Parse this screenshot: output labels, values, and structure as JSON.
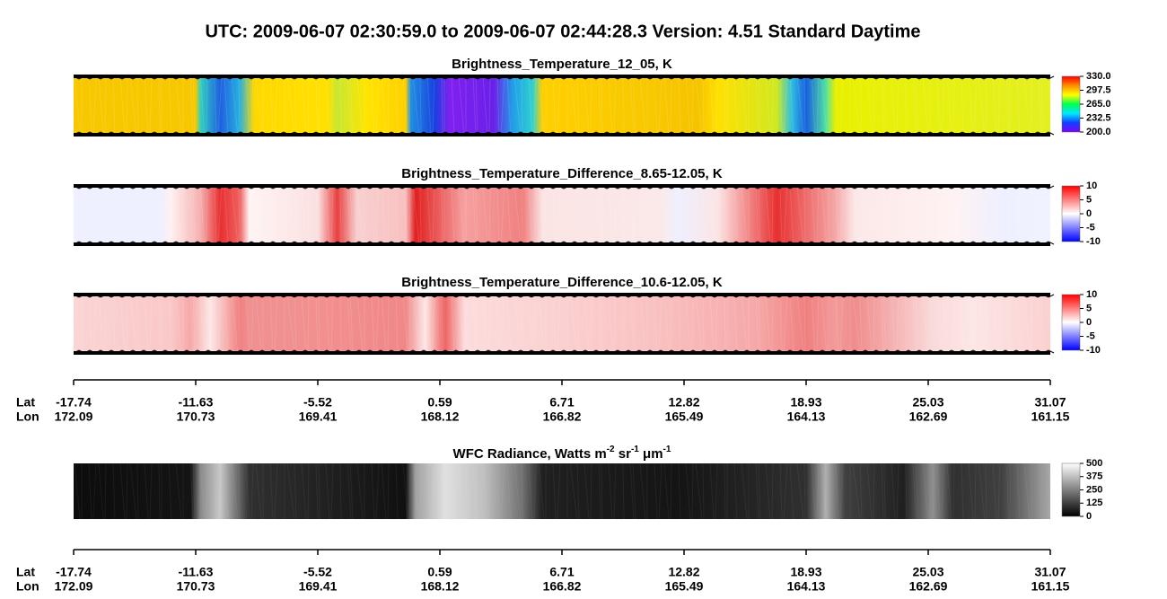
{
  "chart_data": [
    {
      "type": "header",
      "title": "UTC:  2009-06-07   02:30:59.0  to  2009-06-07   02:44:28.3    Version: 4.51  Standard Daytime"
    },
    {
      "type": "image",
      "title": "Brightness_Temperature_12_05, K",
      "colorbar": {
        "clim": [
          200,
          330
        ],
        "ticks": [
          {
            "value": 330,
            "label": "330.0"
          },
          {
            "value": 297.5,
            "label": "297.5"
          },
          {
            "value": 265,
            "label": "265.0"
          },
          {
            "value": 232.5,
            "label": "232.5"
          },
          {
            "value": 200,
            "label": "200.0"
          }
        ],
        "colors": [
          "#7a00ff",
          "#1040ff",
          "#00e8ff",
          "#00ff50",
          "#ffff00",
          "#ff8c00",
          "#ff0000"
        ]
      }
    },
    {
      "type": "image",
      "title": "Brightness_Temperature_Difference_8.65-12.05, K",
      "colorbar": {
        "clim": [
          -10,
          10
        ],
        "ticks": [
          10,
          5,
          0,
          -5,
          -10
        ],
        "colors": [
          "#0000ff",
          "#ffffff",
          "#ff0000"
        ]
      }
    },
    {
      "type": "image",
      "title": "Brightness_Temperature_Difference_10.6-12.05, K",
      "colorbar": {
        "clim": [
          -10,
          10
        ],
        "ticks": [
          10,
          5,
          0,
          -5,
          -10
        ],
        "colors": [
          "#0000ff",
          "#ffffff",
          "#ff0000"
        ]
      }
    },
    {
      "type": "axis",
      "row_labels": [
        "Lat",
        "Lon"
      ],
      "lat": [
        -17.74,
        -11.63,
        -5.52,
        0.59,
        6.71,
        12.82,
        18.93,
        25.03,
        31.07
      ],
      "lon": [
        172.09,
        170.73,
        169.41,
        168.12,
        166.82,
        165.49,
        164.13,
        162.69,
        161.15
      ]
    },
    {
      "type": "image",
      "title_parts": [
        {
          "text": "WFC Radiance, Watts m"
        },
        {
          "text": "-2",
          "sup": true
        },
        {
          "text": " sr"
        },
        {
          "text": "-1",
          "sup": true
        },
        {
          "text": " μm"
        },
        {
          "text": "-1",
          "sup": true
        }
      ],
      "colorbar": {
        "clim": [
          0,
          500
        ],
        "ticks": [
          500,
          375,
          250,
          125,
          0
        ],
        "colors": [
          "#000000",
          "#ffffff"
        ]
      }
    },
    {
      "type": "axis",
      "row_labels": [
        "Lat",
        "Lon"
      ],
      "lat": [
        -17.74,
        -11.63,
        -5.52,
        0.59,
        6.71,
        12.82,
        18.93,
        25.03,
        31.07
      ],
      "lon": [
        172.09,
        170.73,
        169.41,
        168.12,
        166.82,
        165.49,
        164.13,
        162.69,
        161.15
      ]
    }
  ]
}
